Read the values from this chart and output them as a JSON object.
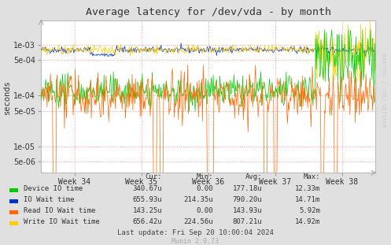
{
  "title": "Average latency for /dev/vda - by month",
  "ylabel": "seconds",
  "background_color": "#e0e0e0",
  "plot_bg_color": "#ffffff",
  "grid_color": "#ff9999",
  "x_ticks_labels": [
    "Week 34",
    "Week 35",
    "Week 36",
    "Week 37",
    "Week 38"
  ],
  "y_ticks": [
    5e-06,
    1e-05,
    5e-05,
    0.0001,
    0.0005,
    0.001
  ],
  "ylim": [
    3e-06,
    0.003
  ],
  "legend": [
    {
      "label": "Device IO time",
      "color": "#00cc00"
    },
    {
      "label": "IO Wait time",
      "color": "#0033cc"
    },
    {
      "label": "Read IO Wait time",
      "color": "#ff6600"
    },
    {
      "label": "Write IO Wait time",
      "color": "#ffcc00"
    }
  ],
  "legend_table": {
    "headers": [
      "Cur:",
      "Min:",
      "Avg:",
      "Max:"
    ],
    "rows": [
      [
        "340.67u",
        "0.00",
        "177.18u",
        "12.33m"
      ],
      [
        "655.93u",
        "214.35u",
        "790.20u",
        "14.71m"
      ],
      [
        "143.25u",
        "0.00",
        "143.93u",
        "5.92m"
      ],
      [
        "656.42u",
        "224.56u",
        "807.21u",
        "14.92m"
      ]
    ]
  },
  "last_update": "Last update: Fri Sep 20 10:00:04 2024",
  "munin_version": "Munin 2.0.73",
  "rrdtool_label": "RRDTOOL / TOBI OETIKER",
  "n_points": 500
}
